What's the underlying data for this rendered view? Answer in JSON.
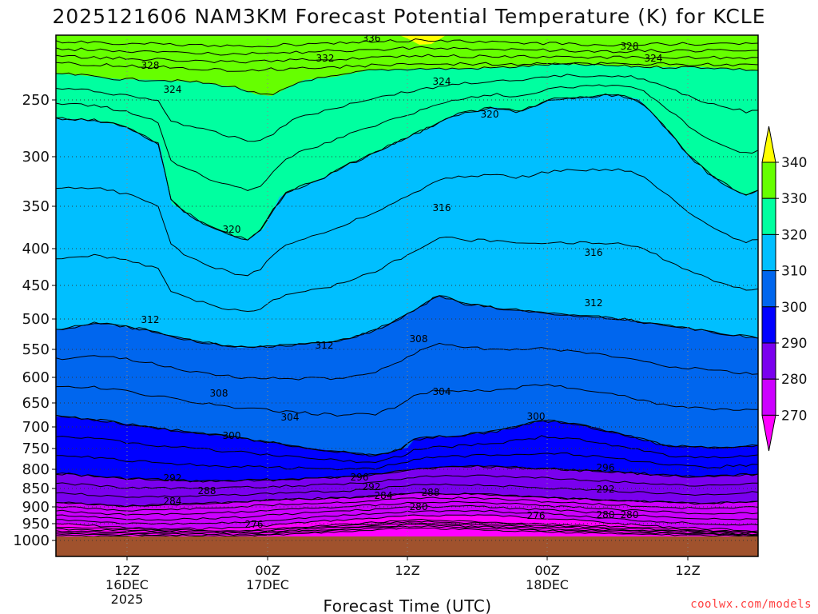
{
  "chart_data": {
    "type": "time-height contour (filled)",
    "title": "2025121606 NAM3KM Forecast Potential Temperature (K) for KCLE",
    "xlabel": "Forecast Time (UTC)",
    "ylabel": "",
    "y_axis": {
      "scale": "pressure (log-like)",
      "ticks": [
        250,
        300,
        350,
        400,
        450,
        500,
        550,
        600,
        650,
        700,
        750,
        800,
        850,
        900,
        950,
        1000
      ],
      "inverted": true
    },
    "x_axis": {
      "ticks": [
        {
          "label": "12Z",
          "sub": "16DEC",
          "sub2": "2025"
        },
        {
          "label": "00Z",
          "sub": "17DEC",
          "sub2": ""
        },
        {
          "label": "12Z",
          "sub": "",
          "sub2": ""
        },
        {
          "label": "00Z",
          "sub": "18DEC",
          "sub2": ""
        },
        {
          "label": "12Z",
          "sub": "",
          "sub2": ""
        }
      ],
      "grid": "dotted"
    },
    "legend": {
      "type": "colorbar",
      "placement": "right",
      "levels": [
        270,
        280,
        290,
        300,
        310,
        320,
        330,
        340
      ],
      "colors": [
        "#ff00ff",
        "#cc00ff",
        "#7a00ee",
        "#0000ff",
        "#0066ee",
        "#00bfff",
        "#00ffa0",
        "#66ff00",
        "#ffff00"
      ]
    },
    "contour_interval": 4,
    "contour_labels": [
      "336",
      "332",
      "328",
      "328",
      "324",
      "324",
      "324",
      "320",
      "320",
      "316",
      "316",
      "312",
      "312",
      "312",
      "308",
      "308",
      "304",
      "304",
      "300",
      "300",
      "296",
      "296",
      "292",
      "292",
      "292",
      "288",
      "288",
      "284",
      "284",
      "280",
      "280",
      "280",
      "276",
      "276"
    ],
    "ground_color": "#a0522d"
  },
  "credit": {
    "text": "coolwx.com/models",
    "color": "#ff4040"
  }
}
